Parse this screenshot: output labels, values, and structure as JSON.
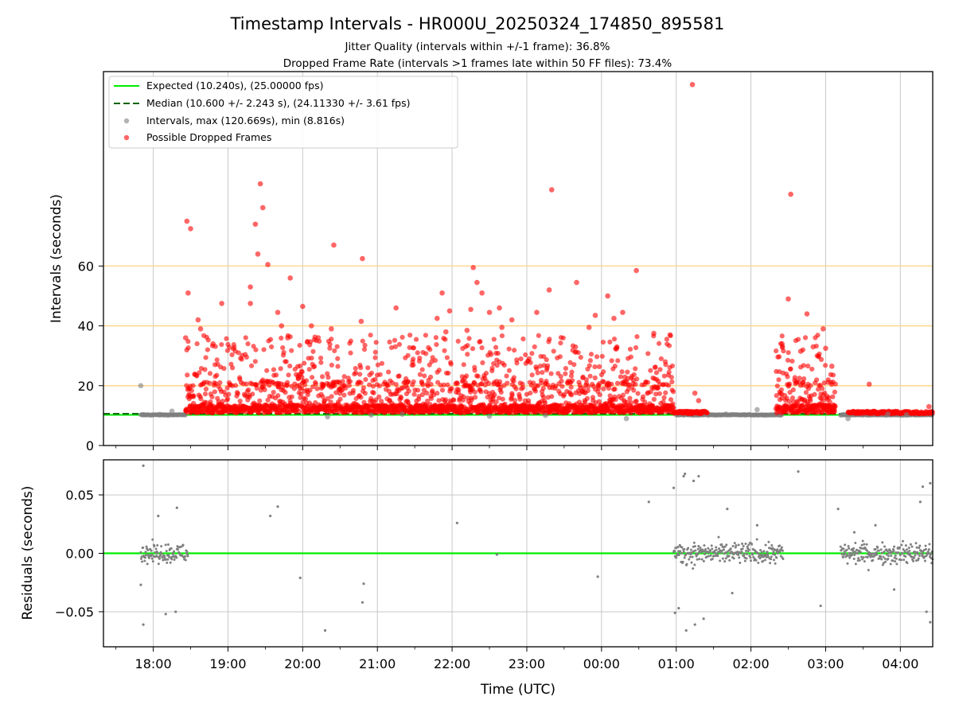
{
  "colors": {
    "expected": "#00ee00",
    "median": "#006400",
    "intervals": "#808080",
    "dropped": "#ff0000",
    "hline": "#ffd27f",
    "grid": "#c8c8c8"
  },
  "chart_data": [
    {
      "type": "scatter",
      "title": "Timestamp Intervals - HR000U_20250324_174850_895581",
      "subtitle_1": "Jitter Quality (intervals within +/-1 frame): 36.8%",
      "subtitle_2": "Dropped Frame Rate (intervals >1 frames late within 50 FF files): 73.4%",
      "xlabel": "",
      "ylabel": "Intervals (seconds)",
      "xlim": [
        "17:20",
        "04:26"
      ],
      "ylim": [
        0,
        125
      ],
      "yticks": [
        0,
        20,
        40,
        60
      ],
      "x_ticks": [
        "18:00",
        "19:00",
        "20:00",
        "21:00",
        "22:00",
        "23:00",
        "00:00",
        "01:00",
        "02:00",
        "03:00",
        "04:00"
      ],
      "horizontal_lines": [
        20,
        40,
        60
      ],
      "grid": "vertical",
      "legend": {
        "placement": "upper-left",
        "entries": [
          "Expected (10.240s), (25.00000 fps)",
          "Median (10.600 +/- 2.243 s), (24.11330 +/- 3.61 fps)",
          "Intervals, max (120.669s), min (8.816s)",
          "Possible Dropped Frames"
        ]
      },
      "series": [
        {
          "name": "Expected (10.240s), (25.00000 fps)",
          "style": "line",
          "y": 10.24
        },
        {
          "name": "Median (10.600 +/- 2.243 s), (24.11330 +/- 3.61 fps)",
          "style": "dashed-line",
          "y": 10.6
        },
        {
          "name": "Intervals, max (120.669s), min (8.816s)",
          "style": "scatter",
          "points": [
            [
              "17:50",
              20.0
            ],
            [
              "17:52",
              10.3
            ],
            [
              "18:05",
              10.4
            ],
            [
              "18:15",
              11.5
            ],
            [
              "20:20",
              9.6
            ],
            [
              "20:55",
              10.2
            ],
            [
              "21:20",
              10.5
            ],
            [
              "22:30",
              9.8
            ],
            [
              "23:15",
              10.1
            ],
            [
              "00:20",
              9.0
            ],
            [
              "01:40",
              10.5
            ],
            [
              "02:05",
              12.0
            ],
            [
              "03:18",
              9.0
            ],
            [
              "03:50",
              10.5
            ],
            [
              "04:05",
              10.3
            ]
          ]
        },
        {
          "name": "Possible Dropped Frames",
          "style": "scatter",
          "points": [
            [
              "18:27",
              75.0
            ],
            [
              "18:30",
              72.5
            ],
            [
              "18:28",
              51.0
            ],
            [
              "18:26",
              36.0
            ],
            [
              "18:36",
              42.0
            ],
            [
              "18:38",
              39.0
            ],
            [
              "18:48",
              34.0
            ],
            [
              "18:55",
              47.5
            ],
            [
              "19:18",
              53.0
            ],
            [
              "19:18",
              47.5
            ],
            [
              "19:22",
              74.0
            ],
            [
              "19:24",
              64.0
            ],
            [
              "19:26",
              87.5
            ],
            [
              "19:28",
              79.5
            ],
            [
              "19:32",
              60.5
            ],
            [
              "19:40",
              44.5
            ],
            [
              "19:43",
              40.0
            ],
            [
              "19:48",
              36.0
            ],
            [
              "19:50",
              56.0
            ],
            [
              "20:00",
              46.5
            ],
            [
              "20:07",
              40.0
            ],
            [
              "20:25",
              67.0
            ],
            [
              "20:23",
              39.0
            ],
            [
              "20:48",
              62.5
            ],
            [
              "20:47",
              41.5
            ],
            [
              "21:15",
              46.0
            ],
            [
              "21:48",
              42.5
            ],
            [
              "21:55",
              38.0
            ],
            [
              "21:52",
              51.0
            ],
            [
              "21:58",
              45.0
            ],
            [
              "22:12",
              38.5
            ],
            [
              "22:15",
              45.5
            ],
            [
              "22:17",
              59.5
            ],
            [
              "22:20",
              54.5
            ],
            [
              "22:24",
              51.0
            ],
            [
              "22:30",
              44.5
            ],
            [
              "22:38",
              46.0
            ],
            [
              "22:40",
              39.5
            ],
            [
              "22:48",
              42.0
            ],
            [
              "23:08",
              44.5
            ],
            [
              "23:18",
              52.0
            ],
            [
              "23:20",
              85.5
            ],
            [
              "23:40",
              54.5
            ],
            [
              "23:50",
              39.5
            ],
            [
              "23:55",
              43.5
            ],
            [
              "00:05",
              50.0
            ],
            [
              "00:10",
              42.5
            ],
            [
              "00:17",
              44.5
            ],
            [
              "00:28",
              58.5
            ],
            [
              "00:42",
              37.5
            ],
            [
              "00:55",
              37.0
            ],
            [
              "01:13",
              120.669
            ],
            [
              "01:15",
              17.5
            ],
            [
              "01:18",
              15.0
            ],
            [
              "02:25",
              34.0
            ],
            [
              "02:30",
              49.0
            ],
            [
              "02:32",
              84.0
            ],
            [
              "02:40",
              31.5
            ],
            [
              "02:45",
              44.0
            ],
            [
              "02:50",
              33.0
            ],
            [
              "02:58",
              39.0
            ],
            [
              "03:00",
              32.5
            ],
            [
              "03:05",
              26.5
            ],
            [
              "03:35",
              20.5
            ],
            [
              "04:23",
              13.0
            ]
          ]
        }
      ]
    },
    {
      "type": "scatter",
      "title": "",
      "xlabel": "Time (UTC)",
      "ylabel": "Residuals (seconds)",
      "xlim": [
        "17:20",
        "04:26"
      ],
      "ylim": [
        -0.08,
        0.08
      ],
      "yticks": [
        -0.05,
        0.0,
        0.05
      ],
      "ytick_labels": [
        "−0.05",
        "0.00",
        "0.05"
      ],
      "x_ticks": [
        "18:00",
        "19:00",
        "20:00",
        "21:00",
        "22:00",
        "23:00",
        "00:00",
        "01:00",
        "02:00",
        "03:00",
        "04:00"
      ],
      "grid": "both",
      "series": [
        {
          "name": "",
          "style": "line",
          "y": 0.0
        },
        {
          "name": "",
          "style": "scatter",
          "points": [
            [
              "17:52",
              0.075
            ],
            [
              "17:52",
              -0.061
            ],
            [
              "17:50",
              -0.027
            ],
            [
              "18:04",
              0.032
            ],
            [
              "18:10",
              -0.052
            ],
            [
              "18:19",
              0.039
            ],
            [
              "18:18",
              -0.05
            ],
            [
              "19:34",
              0.032
            ],
            [
              "19:40",
              0.04
            ],
            [
              "19:58",
              -0.021
            ],
            [
              "20:18",
              -0.066
            ],
            [
              "20:49",
              -0.026
            ],
            [
              "20:48",
              -0.042
            ],
            [
              "22:04",
              0.026
            ],
            [
              "22:36",
              -0.001
            ],
            [
              "23:57",
              -0.02
            ],
            [
              "00:38",
              0.044
            ],
            [
              "00:58",
              0.056
            ],
            [
              "00:59",
              -0.051
            ],
            [
              "01:02",
              -0.047
            ],
            [
              "01:06",
              0.066
            ],
            [
              "01:07",
              0.068
            ],
            [
              "01:08",
              -0.066
            ],
            [
              "01:14",
              0.062
            ],
            [
              "01:15",
              -0.061
            ],
            [
              "01:18",
              0.066
            ],
            [
              "01:22",
              -0.056
            ],
            [
              "01:41",
              0.038
            ],
            [
              "01:45",
              -0.034
            ],
            [
              "02:05",
              0.024
            ],
            [
              "02:38",
              0.07
            ],
            [
              "02:56",
              -0.045
            ],
            [
              "03:10",
              0.038
            ],
            [
              "03:23",
              0.018
            ],
            [
              "03:40",
              0.024
            ],
            [
              "03:55",
              -0.031
            ],
            [
              "04:16",
              0.044
            ],
            [
              "04:18",
              0.057
            ],
            [
              "04:21",
              -0.05
            ],
            [
              "04:24",
              0.06
            ],
            [
              "04:24",
              -0.059
            ]
          ]
        }
      ]
    }
  ]
}
